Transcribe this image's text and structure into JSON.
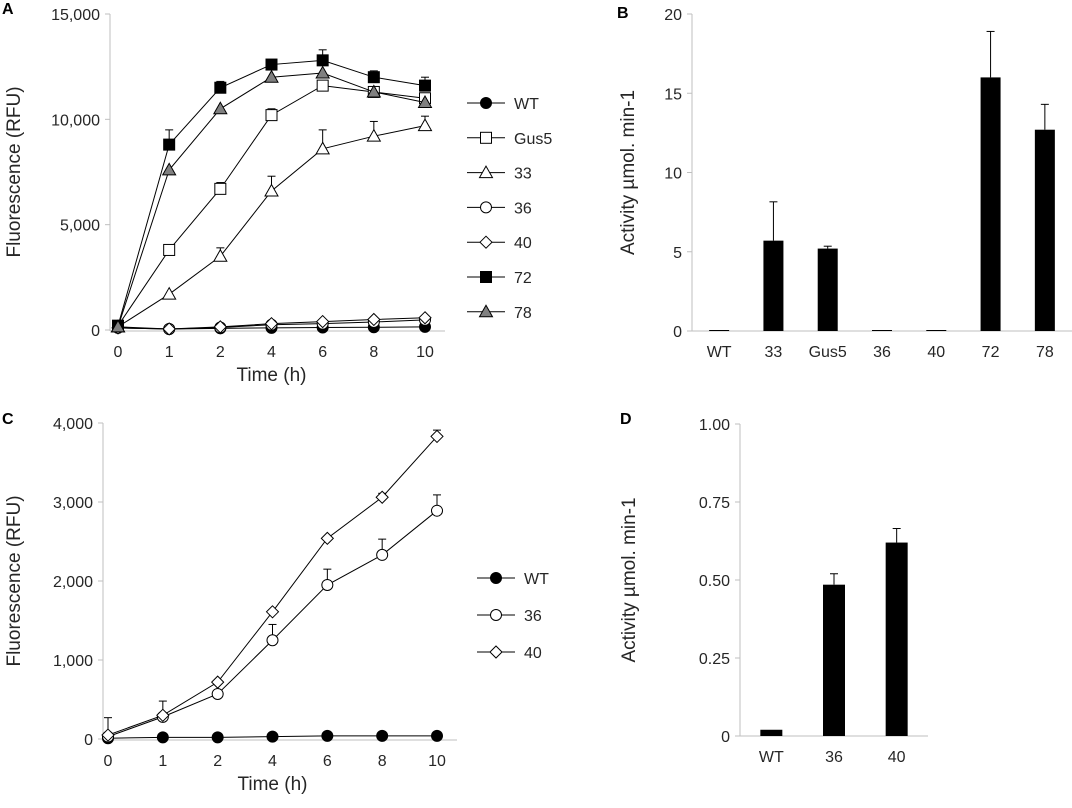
{
  "figure_panels": [
    "A",
    "B",
    "C",
    "D"
  ],
  "chart_data": [
    {
      "panel": "A",
      "type": "line",
      "x": [
        "0",
        "1",
        "2",
        "4",
        "6",
        "8",
        "10"
      ],
      "xlabel": "Time (h)",
      "ylabel": "Fluorescence (RFU)",
      "ylim": [
        0,
        15000
      ],
      "yticks": [
        "0",
        "5,000",
        "10,000",
        "15,000"
      ],
      "yticks_values": [
        0,
        5000,
        10000,
        15000
      ],
      "legend_position": "right",
      "series": [
        {
          "name": "WT",
          "marker": "circle",
          "fill": "#000000",
          "values": [
            150,
            50,
            80,
            100,
            120,
            130,
            150
          ],
          "errors": [
            0,
            0,
            0,
            0,
            0,
            0,
            0
          ]
        },
        {
          "name": "Gus5",
          "marker": "square",
          "fill": "#ffffff",
          "values": [
            200,
            3800,
            6700,
            10200,
            11600,
            11300,
            11000
          ],
          "errors": [
            0,
            0,
            300,
            300,
            0,
            0,
            0
          ]
        },
        {
          "name": "33",
          "marker": "triangle",
          "fill": "#ffffff",
          "values": [
            150,
            1700,
            3500,
            6600,
            8600,
            9200,
            9700
          ],
          "errors": [
            0,
            0,
            400,
            700,
            900,
            700,
            450
          ]
        },
        {
          "name": "36",
          "marker": "circle",
          "fill": "#ffffff",
          "values": [
            100,
            50,
            120,
            250,
            300,
            380,
            480
          ],
          "errors": [
            0,
            0,
            0,
            0,
            0,
            0,
            0
          ]
        },
        {
          "name": "40",
          "marker": "diamond",
          "fill": "#ffffff",
          "values": [
            100,
            50,
            150,
            300,
            400,
            500,
            580
          ],
          "errors": [
            0,
            0,
            0,
            0,
            0,
            0,
            0
          ]
        },
        {
          "name": "72",
          "marker": "square",
          "fill": "#000000",
          "values": [
            200,
            8800,
            11500,
            12600,
            12800,
            12000,
            11600
          ],
          "errors": [
            0,
            700,
            300,
            0,
            500,
            300,
            400
          ]
        },
        {
          "name": "78",
          "marker": "triangle",
          "fill": "#808080",
          "values": [
            150,
            7600,
            10500,
            12000,
            12200,
            11300,
            10800
          ],
          "errors": [
            0,
            0,
            0,
            0,
            0,
            0,
            0
          ]
        }
      ]
    },
    {
      "panel": "B",
      "type": "bar",
      "categories": [
        "WT",
        "33",
        "Gus5",
        "36",
        "40",
        "72",
        "78"
      ],
      "values": [
        0,
        5.7,
        5.2,
        0.05,
        0.05,
        16,
        12.7
      ],
      "errors": [
        0,
        2.45,
        0.15,
        0,
        0,
        2.9,
        1.6
      ],
      "xlabel": "",
      "ylabel": "Activity µmol. min-1",
      "ylim": [
        0,
        20
      ],
      "yticks": [
        "0",
        "5",
        "10",
        "15",
        "20"
      ],
      "yticks_values": [
        0,
        5,
        10,
        15,
        20
      ],
      "bar_color": "#000000"
    },
    {
      "panel": "C",
      "type": "line",
      "x": [
        "0",
        "1",
        "2",
        "4",
        "6",
        "8",
        "10"
      ],
      "xlabel": "Time (h)",
      "ylabel": "Fluorescence (RFU)",
      "ylim": [
        0,
        4000
      ],
      "yticks": [
        "0",
        "1,000",
        "2,000",
        "3,000",
        "4,000"
      ],
      "yticks_values": [
        0,
        1000,
        2000,
        3000,
        4000
      ],
      "legend_position": "right",
      "series": [
        {
          "name": "WT",
          "marker": "circle",
          "fill": "#000000",
          "values": [
            10,
            20,
            20,
            30,
            40,
            40,
            40
          ],
          "errors": [
            0,
            0,
            0,
            0,
            0,
            0,
            0
          ]
        },
        {
          "name": "36",
          "marker": "circle",
          "fill": "#ffffff",
          "values": [
            30,
            280,
            570,
            1250,
            1950,
            2330,
            2890
          ],
          "errors": [
            240,
            200,
            0,
            200,
            200,
            200,
            200
          ]
        },
        {
          "name": "40",
          "marker": "diamond",
          "fill": "#ffffff",
          "values": [
            50,
            300,
            720,
            1610,
            2540,
            3060,
            3830
          ],
          "errors": [
            0,
            0,
            0,
            0,
            0,
            50,
            80
          ]
        }
      ]
    },
    {
      "panel": "D",
      "type": "bar",
      "categories": [
        "WT",
        "36",
        "40"
      ],
      "values": [
        0.02,
        0.485,
        0.62
      ],
      "errors": [
        0,
        0.035,
        0.045
      ],
      "xlabel": "",
      "ylabel": "Activity µmol. min-1",
      "ylim": [
        0,
        1
      ],
      "yticks": [
        "0",
        "0.25",
        "0.50",
        "0.75",
        "1.00"
      ],
      "yticks_values": [
        0,
        0.25,
        0.5,
        0.75,
        1.0
      ],
      "bar_color": "#000000"
    }
  ]
}
